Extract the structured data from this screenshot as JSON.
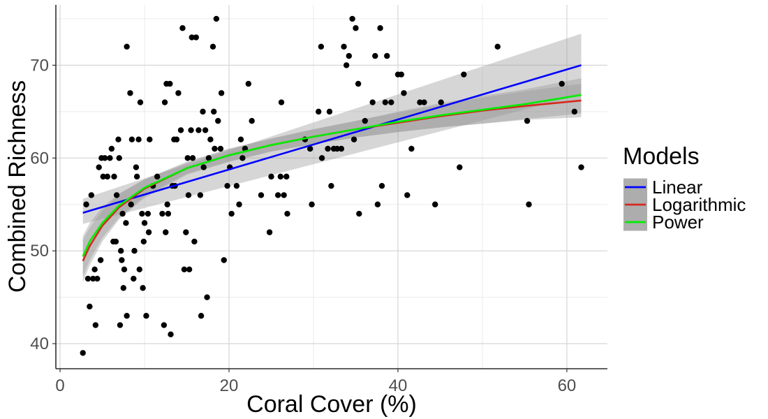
{
  "chart_data": {
    "type": "scatter",
    "xlabel": "Coral Cover (%)",
    "ylabel": "Combined Richness",
    "xlim": [
      -0.5,
      64.8
    ],
    "ylim": [
      37.3,
      76.5
    ],
    "xticks": [
      0,
      20,
      40,
      60
    ],
    "yticks": [
      40,
      50,
      60,
      70
    ],
    "grid": true,
    "legend": {
      "title": "Models",
      "position": "right"
    },
    "points": [
      [
        2.7,
        39
      ],
      [
        3.1,
        55
      ],
      [
        3.3,
        47
      ],
      [
        3.5,
        44
      ],
      [
        3.7,
        56
      ],
      [
        3.9,
        47
      ],
      [
        4.1,
        48
      ],
      [
        4.2,
        42
      ],
      [
        4.4,
        47
      ],
      [
        4.6,
        59
      ],
      [
        4.8,
        49
      ],
      [
        4.9,
        60
      ],
      [
        5.1,
        58
      ],
      [
        5.3,
        60
      ],
      [
        5.6,
        58
      ],
      [
        5.9,
        60
      ],
      [
        6.1,
        61
      ],
      [
        6.3,
        51
      ],
      [
        6.4,
        58
      ],
      [
        6.6,
        51
      ],
      [
        6.7,
        56
      ],
      [
        6.9,
        62
      ],
      [
        7.0,
        60
      ],
      [
        7.1,
        42
      ],
      [
        7.2,
        50
      ],
      [
        7.3,
        49
      ],
      [
        7.4,
        54
      ],
      [
        7.5,
        46
      ],
      [
        7.6,
        48
      ],
      [
        7.8,
        53
      ],
      [
        7.9,
        72
      ],
      [
        7.9,
        43
      ],
      [
        8.3,
        67
      ],
      [
        8.4,
        55
      ],
      [
        8.5,
        62
      ],
      [
        8.7,
        47
      ],
      [
        8.8,
        50
      ],
      [
        9.0,
        59
      ],
      [
        9.1,
        58
      ],
      [
        9.3,
        62
      ],
      [
        9.4,
        48
      ],
      [
        9.5,
        66
      ],
      [
        9.7,
        54
      ],
      [
        9.8,
        46
      ],
      [
        9.9,
        51
      ],
      [
        10.0,
        53
      ],
      [
        10.2,
        43
      ],
      [
        10.4,
        54
      ],
      [
        10.5,
        52
      ],
      [
        10.6,
        62
      ],
      [
        11.0,
        57
      ],
      [
        11.5,
        58
      ],
      [
        12.1,
        54
      ],
      [
        12.3,
        42
      ],
      [
        12.4,
        66
      ],
      [
        12.5,
        52
      ],
      [
        12.6,
        68
      ],
      [
        12.7,
        55
      ],
      [
        12.8,
        54
      ],
      [
        13.0,
        68
      ],
      [
        13.1,
        41
      ],
      [
        13.3,
        57
      ],
      [
        13.5,
        62
      ],
      [
        13.6,
        57
      ],
      [
        13.8,
        62
      ],
      [
        14.0,
        67
      ],
      [
        14.3,
        63
      ],
      [
        14.5,
        74
      ],
      [
        14.7,
        48
      ],
      [
        14.9,
        52
      ],
      [
        15.1,
        60
      ],
      [
        15.2,
        56
      ],
      [
        15.3,
        48
      ],
      [
        15.5,
        63
      ],
      [
        15.6,
        73
      ],
      [
        15.7,
        60
      ],
      [
        15.9,
        51
      ],
      [
        16.1,
        73
      ],
      [
        16.4,
        63
      ],
      [
        16.6,
        56
      ],
      [
        16.7,
        43
      ],
      [
        16.9,
        65
      ],
      [
        17.0,
        59
      ],
      [
        17.2,
        63
      ],
      [
        17.4,
        45
      ],
      [
        17.6,
        60
      ],
      [
        17.8,
        62
      ],
      [
        18.1,
        72
      ],
      [
        18.2,
        65
      ],
      [
        18.3,
        61
      ],
      [
        18.5,
        75
      ],
      [
        18.7,
        64
      ],
      [
        19.0,
        61
      ],
      [
        19.1,
        67
      ],
      [
        19.4,
        49
      ],
      [
        19.8,
        57
      ],
      [
        20.1,
        59
      ],
      [
        20.3,
        54
      ],
      [
        20.9,
        57
      ],
      [
        21.2,
        55
      ],
      [
        21.4,
        62
      ],
      [
        21.6,
        60
      ],
      [
        21.9,
        61
      ],
      [
        22.3,
        68
      ],
      [
        22.7,
        64
      ],
      [
        23.8,
        56
      ],
      [
        24.8,
        52
      ],
      [
        25.0,
        58
      ],
      [
        25.8,
        56
      ],
      [
        26.1,
        58
      ],
      [
        26.2,
        66
      ],
      [
        26.5,
        56
      ],
      [
        26.8,
        58
      ],
      [
        26.9,
        54
      ],
      [
        29.0,
        62
      ],
      [
        29.6,
        61
      ],
      [
        29.8,
        55
      ],
      [
        30.6,
        65
      ],
      [
        30.9,
        72
      ],
      [
        31.0,
        60
      ],
      [
        31.7,
        61
      ],
      [
        31.9,
        65
      ],
      [
        32.1,
        57
      ],
      [
        32.4,
        61
      ],
      [
        32.8,
        61
      ],
      [
        33.3,
        61
      ],
      [
        33.6,
        72
      ],
      [
        33.9,
        70
      ],
      [
        34.2,
        71
      ],
      [
        34.6,
        75
      ],
      [
        34.8,
        62
      ],
      [
        35.0,
        74
      ],
      [
        35.3,
        68
      ],
      [
        35.4,
        54
      ],
      [
        36.1,
        64
      ],
      [
        37.0,
        66
      ],
      [
        37.3,
        71
      ],
      [
        37.6,
        55
      ],
      [
        37.9,
        74
      ],
      [
        38.1,
        57
      ],
      [
        38.5,
        66
      ],
      [
        38.7,
        71
      ],
      [
        39.2,
        66
      ],
      [
        40.0,
        69
      ],
      [
        40.4,
        69
      ],
      [
        40.7,
        67
      ],
      [
        41.1,
        56
      ],
      [
        41.6,
        61
      ],
      [
        42.6,
        66
      ],
      [
        43.1,
        66
      ],
      [
        44.4,
        55
      ],
      [
        45.1,
        66
      ],
      [
        47.3,
        59
      ],
      [
        47.8,
        69
      ],
      [
        51.8,
        72
      ],
      [
        55.3,
        64
      ],
      [
        55.5,
        55
      ],
      [
        59.4,
        68
      ],
      [
        60.9,
        65
      ],
      [
        61.7,
        59
      ]
    ],
    "series": [
      {
        "name": "Linear",
        "color": "#0000ff",
        "x": [
          2.7,
          61.7
        ],
        "y": [
          54.1,
          70.0
        ],
        "ci_lower": [
          52.9,
          66.8
        ],
        "ci_upper": [
          55.6,
          73.4
        ]
      },
      {
        "name": "Logarithmic",
        "color": "#d42a1e",
        "x": [
          2.7,
          3.5,
          5,
          7,
          10,
          15,
          20,
          25,
          30,
          35,
          40,
          45,
          50,
          55,
          61.7
        ],
        "y": [
          48.9,
          50.5,
          52.7,
          54.7,
          56.7,
          58.9,
          60.3,
          61.4,
          62.3,
          63.1,
          63.8,
          64.5,
          65.1,
          65.6,
          66.2
        ],
        "ci_lower": [
          46.6,
          48.4,
          51.0,
          53.4,
          55.7,
          58.2,
          59.6,
          60.7,
          61.5,
          62.2,
          62.8,
          63.3,
          63.7,
          64.1,
          64.4
        ],
        "ci_upper": [
          51.2,
          52.5,
          54.3,
          56.1,
          57.7,
          59.6,
          61.0,
          62.1,
          63.1,
          64.0,
          64.9,
          65.7,
          66.5,
          67.2,
          68.0
        ]
      },
      {
        "name": "Power",
        "color": "#00ee00",
        "x": [
          2.7,
          3.5,
          5,
          7,
          10,
          15,
          20,
          25,
          30,
          35,
          40,
          45,
          50,
          55,
          61.7
        ],
        "y": [
          49.4,
          51.0,
          53.0,
          54.9,
          56.8,
          58.9,
          60.3,
          61.4,
          62.3,
          63.1,
          63.9,
          64.6,
          65.2,
          65.8,
          66.8
        ],
        "ci_lower": [
          47.2,
          49.0,
          51.4,
          53.6,
          55.9,
          58.3,
          59.6,
          60.7,
          61.5,
          62.2,
          62.8,
          63.3,
          63.7,
          64.2,
          64.8
        ],
        "ci_upper": [
          51.6,
          53.0,
          54.7,
          56.2,
          57.7,
          59.5,
          61.0,
          62.1,
          63.1,
          64.0,
          65.0,
          65.9,
          66.7,
          67.4,
          68.6
        ]
      }
    ]
  }
}
